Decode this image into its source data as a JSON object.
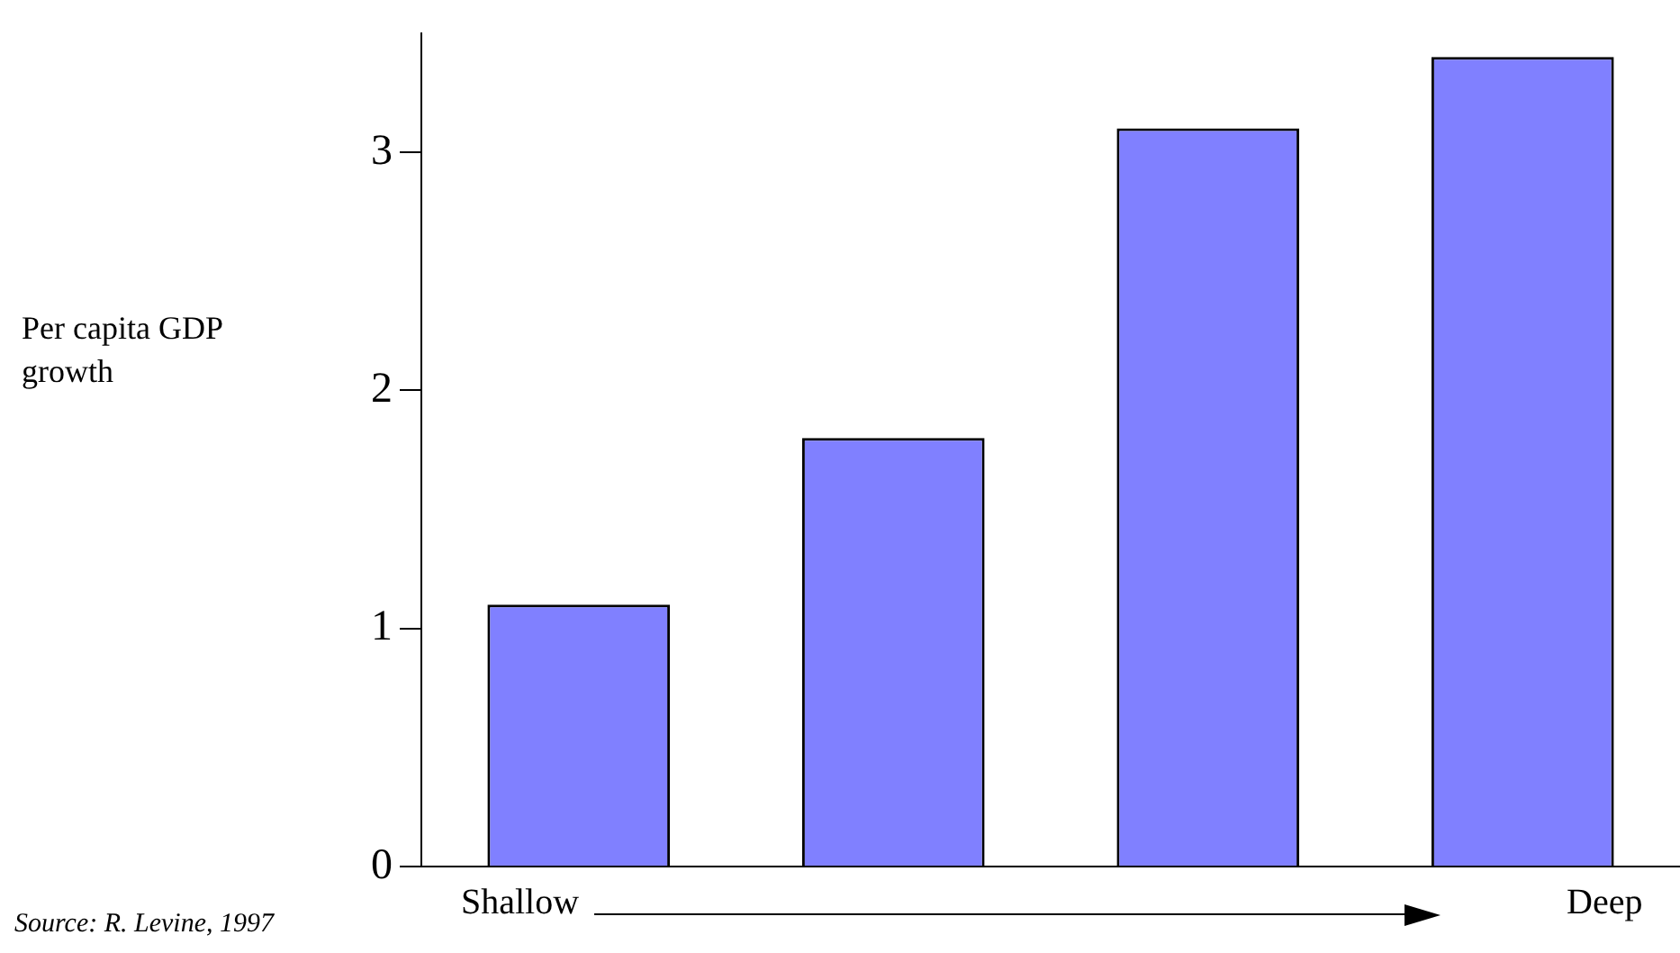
{
  "chart_data": {
    "type": "bar",
    "ylabel": "Per capita GDP growth",
    "categories": [
      null,
      null,
      null,
      null
    ],
    "values": [
      1.1,
      1.8,
      3.1,
      3.4
    ],
    "color": "#8080ff",
    "ylim": [
      0,
      3.5
    ],
    "yticks": [
      0,
      1,
      2,
      3
    ],
    "grid": false,
    "legend": false,
    "tick_labels": "y",
    "annotations": [
      "Shallow",
      "Deep",
      "Source: R. Levine, 1997"
    ]
  }
}
